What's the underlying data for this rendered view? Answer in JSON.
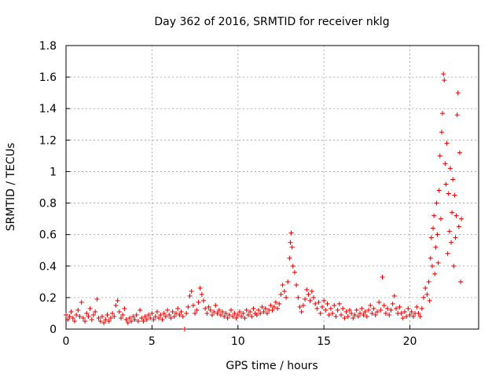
{
  "chart_data": {
    "type": "scatter",
    "title": "Day 362 of 2016, SRMTID for receiver nklg",
    "xlabel": "GPS time / hours",
    "ylabel": "SRMTID / TECUs",
    "xlim": [
      0,
      24
    ],
    "ylim": [
      0,
      1.8
    ],
    "xticks": [
      0,
      5,
      10,
      15,
      20
    ],
    "xtick_labels": [
      "0",
      "5",
      "10",
      "15",
      "20"
    ],
    "yticks": [
      0,
      0.2,
      0.4,
      0.6,
      0.8,
      1.0,
      1.2,
      1.4,
      1.6,
      1.8
    ],
    "ytick_labels": [
      "0",
      "0.2",
      "0.4",
      "0.6",
      "0.8",
      "1",
      "1.2",
      "1.4",
      "1.6",
      "1.8"
    ],
    "grid": true,
    "marker": "+",
    "marker_color": "#e00000",
    "series": [
      {
        "name": "SRMTID",
        "points": [
          [
            0.0,
            0.09
          ],
          [
            0.1,
            0.06
          ],
          [
            0.2,
            0.08
          ],
          [
            0.3,
            0.11
          ],
          [
            0.4,
            0.07
          ],
          [
            0.5,
            0.05
          ],
          [
            0.6,
            0.09
          ],
          [
            0.7,
            0.12
          ],
          [
            0.8,
            0.08
          ],
          [
            0.9,
            0.17
          ],
          [
            1.0,
            0.07
          ],
          [
            1.1,
            0.05
          ],
          [
            1.2,
            0.1
          ],
          [
            1.3,
            0.08
          ],
          [
            1.4,
            0.13
          ],
          [
            1.5,
            0.06
          ],
          [
            1.6,
            0.09
          ],
          [
            1.7,
            0.11
          ],
          [
            1.8,
            0.19
          ],
          [
            1.9,
            0.07
          ],
          [
            2.0,
            0.05
          ],
          [
            2.1,
            0.08
          ],
          [
            2.2,
            0.04
          ],
          [
            2.3,
            0.06
          ],
          [
            2.4,
            0.09
          ],
          [
            2.5,
            0.05
          ],
          [
            2.6,
            0.07
          ],
          [
            2.7,
            0.1
          ],
          [
            2.8,
            0.08
          ],
          [
            2.9,
            0.15
          ],
          [
            3.0,
            0.18
          ],
          [
            3.1,
            0.11
          ],
          [
            3.2,
            0.07
          ],
          [
            3.3,
            0.09
          ],
          [
            3.4,
            0.13
          ],
          [
            3.5,
            0.06
          ],
          [
            3.6,
            0.04
          ],
          [
            3.7,
            0.07
          ],
          [
            3.8,
            0.05
          ],
          [
            3.9,
            0.08
          ],
          [
            4.0,
            0.06
          ],
          [
            4.1,
            0.09
          ],
          [
            4.2,
            0.05
          ],
          [
            4.3,
            0.12
          ],
          [
            4.4,
            0.07
          ],
          [
            4.5,
            0.05
          ],
          [
            4.6,
            0.08
          ],
          [
            4.7,
            0.06
          ],
          [
            4.8,
            0.09
          ],
          [
            4.9,
            0.07
          ],
          [
            5.0,
            0.1
          ],
          [
            5.1,
            0.06
          ],
          [
            5.2,
            0.08
          ],
          [
            5.3,
            0.11
          ],
          [
            5.4,
            0.07
          ],
          [
            5.5,
            0.09
          ],
          [
            5.6,
            0.06
          ],
          [
            5.7,
            0.1
          ],
          [
            5.8,
            0.08
          ],
          [
            5.9,
            0.12
          ],
          [
            6.0,
            0.09
          ],
          [
            6.1,
            0.07
          ],
          [
            6.2,
            0.11
          ],
          [
            6.3,
            0.08
          ],
          [
            6.4,
            0.1
          ],
          [
            6.5,
            0.13
          ],
          [
            6.6,
            0.09
          ],
          [
            6.7,
            0.11
          ],
          [
            6.8,
            0.08
          ],
          [
            6.9,
            0.0
          ],
          [
            7.0,
            0.1
          ],
          [
            7.1,
            0.14
          ],
          [
            7.2,
            0.21
          ],
          [
            7.3,
            0.24
          ],
          [
            7.4,
            0.15
          ],
          [
            7.5,
            0.1
          ],
          [
            7.6,
            0.12
          ],
          [
            7.7,
            0.17
          ],
          [
            7.8,
            0.26
          ],
          [
            7.9,
            0.22
          ],
          [
            8.0,
            0.18
          ],
          [
            8.1,
            0.13
          ],
          [
            8.2,
            0.1
          ],
          [
            8.3,
            0.14
          ],
          [
            8.4,
            0.12
          ],
          [
            8.5,
            0.09
          ],
          [
            8.6,
            0.11
          ],
          [
            8.7,
            0.15
          ],
          [
            8.8,
            0.1
          ],
          [
            8.9,
            0.12
          ],
          [
            9.0,
            0.09
          ],
          [
            9.1,
            0.11
          ],
          [
            9.2,
            0.08
          ],
          [
            9.3,
            0.1
          ],
          [
            9.4,
            0.07
          ],
          [
            9.5,
            0.09
          ],
          [
            9.6,
            0.12
          ],
          [
            9.7,
            0.08
          ],
          [
            9.8,
            0.1
          ],
          [
            9.9,
            0.07
          ],
          [
            10.0,
            0.09
          ],
          [
            10.1,
            0.11
          ],
          [
            10.2,
            0.08
          ],
          [
            10.3,
            0.1
          ],
          [
            10.4,
            0.07
          ],
          [
            10.5,
            0.12
          ],
          [
            10.6,
            0.09
          ],
          [
            10.7,
            0.11
          ],
          [
            10.8,
            0.08
          ],
          [
            10.9,
            0.13
          ],
          [
            11.0,
            0.1
          ],
          [
            11.1,
            0.09
          ],
          [
            11.2,
            0.12
          ],
          [
            11.3,
            0.1
          ],
          [
            11.4,
            0.14
          ],
          [
            11.5,
            0.11
          ],
          [
            11.6,
            0.13
          ],
          [
            11.7,
            0.1
          ],
          [
            11.8,
            0.12
          ],
          [
            11.9,
            0.15
          ],
          [
            12.0,
            0.12
          ],
          [
            12.1,
            0.14
          ],
          [
            12.2,
            0.17
          ],
          [
            12.3,
            0.13
          ],
          [
            12.4,
            0.16
          ],
          [
            12.5,
            0.22
          ],
          [
            12.6,
            0.28
          ],
          [
            12.7,
            0.24
          ],
          [
            12.8,
            0.2
          ],
          [
            12.9,
            0.3
          ],
          [
            13.0,
            0.45
          ],
          [
            13.05,
            0.55
          ],
          [
            13.1,
            0.61
          ],
          [
            13.15,
            0.52
          ],
          [
            13.2,
            0.4
          ],
          [
            13.3,
            0.36
          ],
          [
            13.4,
            0.28
          ],
          [
            13.5,
            0.2
          ],
          [
            13.6,
            0.14
          ],
          [
            13.7,
            0.11
          ],
          [
            13.8,
            0.15
          ],
          [
            13.9,
            0.19
          ],
          [
            14.0,
            0.25
          ],
          [
            14.1,
            0.22
          ],
          [
            14.2,
            0.18
          ],
          [
            14.3,
            0.24
          ],
          [
            14.4,
            0.2
          ],
          [
            14.5,
            0.16
          ],
          [
            14.6,
            0.13
          ],
          [
            14.7,
            0.17
          ],
          [
            14.8,
            0.1
          ],
          [
            14.9,
            0.14
          ],
          [
            15.0,
            0.18
          ],
          [
            15.1,
            0.12
          ],
          [
            15.2,
            0.16
          ],
          [
            15.3,
            0.09
          ],
          [
            15.4,
            0.13
          ],
          [
            15.5,
            0.1
          ],
          [
            15.6,
            0.15
          ],
          [
            15.7,
            0.08
          ],
          [
            15.8,
            0.12
          ],
          [
            15.9,
            0.16
          ],
          [
            16.0,
            0.09
          ],
          [
            16.1,
            0.13
          ],
          [
            16.2,
            0.07
          ],
          [
            16.3,
            0.11
          ],
          [
            16.4,
            0.08
          ],
          [
            16.5,
            0.12
          ],
          [
            16.6,
            0.1
          ],
          [
            16.7,
            0.07
          ],
          [
            16.8,
            0.09
          ],
          [
            16.9,
            0.12
          ],
          [
            17.0,
            0.08
          ],
          [
            17.1,
            0.1
          ],
          [
            17.2,
            0.13
          ],
          [
            17.3,
            0.09
          ],
          [
            17.4,
            0.11
          ],
          [
            17.5,
            0.08
          ],
          [
            17.6,
            0.12
          ],
          [
            17.7,
            0.15
          ],
          [
            17.8,
            0.1
          ],
          [
            17.9,
            0.13
          ],
          [
            18.0,
            0.09
          ],
          [
            18.1,
            0.11
          ],
          [
            18.2,
            0.17
          ],
          [
            18.3,
            0.12
          ],
          [
            18.4,
            0.33
          ],
          [
            18.5,
            0.15
          ],
          [
            18.6,
            0.1
          ],
          [
            18.7,
            0.13
          ],
          [
            18.8,
            0.09
          ],
          [
            18.9,
            0.12
          ],
          [
            19.0,
            0.16
          ],
          [
            19.1,
            0.21
          ],
          [
            19.2,
            0.13
          ],
          [
            19.3,
            0.1
          ],
          [
            19.4,
            0.14
          ],
          [
            19.5,
            0.1
          ],
          [
            19.6,
            0.07
          ],
          [
            19.7,
            0.11
          ],
          [
            19.8,
            0.08
          ],
          [
            19.9,
            0.13
          ],
          [
            20.0,
            0.09
          ],
          [
            20.1,
            0.11
          ],
          [
            20.2,
            0.08
          ],
          [
            20.3,
            0.1
          ],
          [
            20.4,
            0.14
          ],
          [
            20.5,
            0.1
          ],
          [
            20.6,
            0.08
          ],
          [
            20.7,
            0.13
          ],
          [
            20.8,
            0.2
          ],
          [
            20.9,
            0.26
          ],
          [
            21.0,
            0.22
          ],
          [
            21.1,
            0.3
          ],
          [
            21.15,
            0.18
          ],
          [
            21.2,
            0.45
          ],
          [
            21.25,
            0.58
          ],
          [
            21.3,
            0.4
          ],
          [
            21.35,
            0.64
          ],
          [
            21.4,
            0.72
          ],
          [
            21.45,
            0.35
          ],
          [
            21.5,
            0.52
          ],
          [
            21.55,
            0.8
          ],
          [
            21.6,
            0.6
          ],
          [
            21.65,
            0.42
          ],
          [
            21.7,
            0.88
          ],
          [
            21.75,
            1.1
          ],
          [
            21.8,
            0.7
          ],
          [
            21.85,
            1.25
          ],
          [
            21.9,
            1.37
          ],
          [
            21.95,
            1.62
          ],
          [
            22.0,
            1.58
          ],
          [
            22.05,
            1.05
          ],
          [
            22.1,
            0.92
          ],
          [
            22.15,
            1.18
          ],
          [
            22.2,
            0.48
          ],
          [
            22.25,
            0.86
          ],
          [
            22.3,
            0.62
          ],
          [
            22.35,
            1.02
          ],
          [
            22.4,
            0.55
          ],
          [
            22.45,
            0.74
          ],
          [
            22.5,
            0.95
          ],
          [
            22.55,
            0.4
          ],
          [
            22.6,
            0.85
          ],
          [
            22.65,
            0.58
          ],
          [
            22.7,
            0.72
          ],
          [
            22.75,
            1.36
          ],
          [
            22.8,
            1.5
          ],
          [
            22.85,
            0.65
          ],
          [
            22.9,
            1.12
          ],
          [
            22.95,
            0.3
          ],
          [
            23.0,
            0.7
          ]
        ]
      }
    ]
  }
}
